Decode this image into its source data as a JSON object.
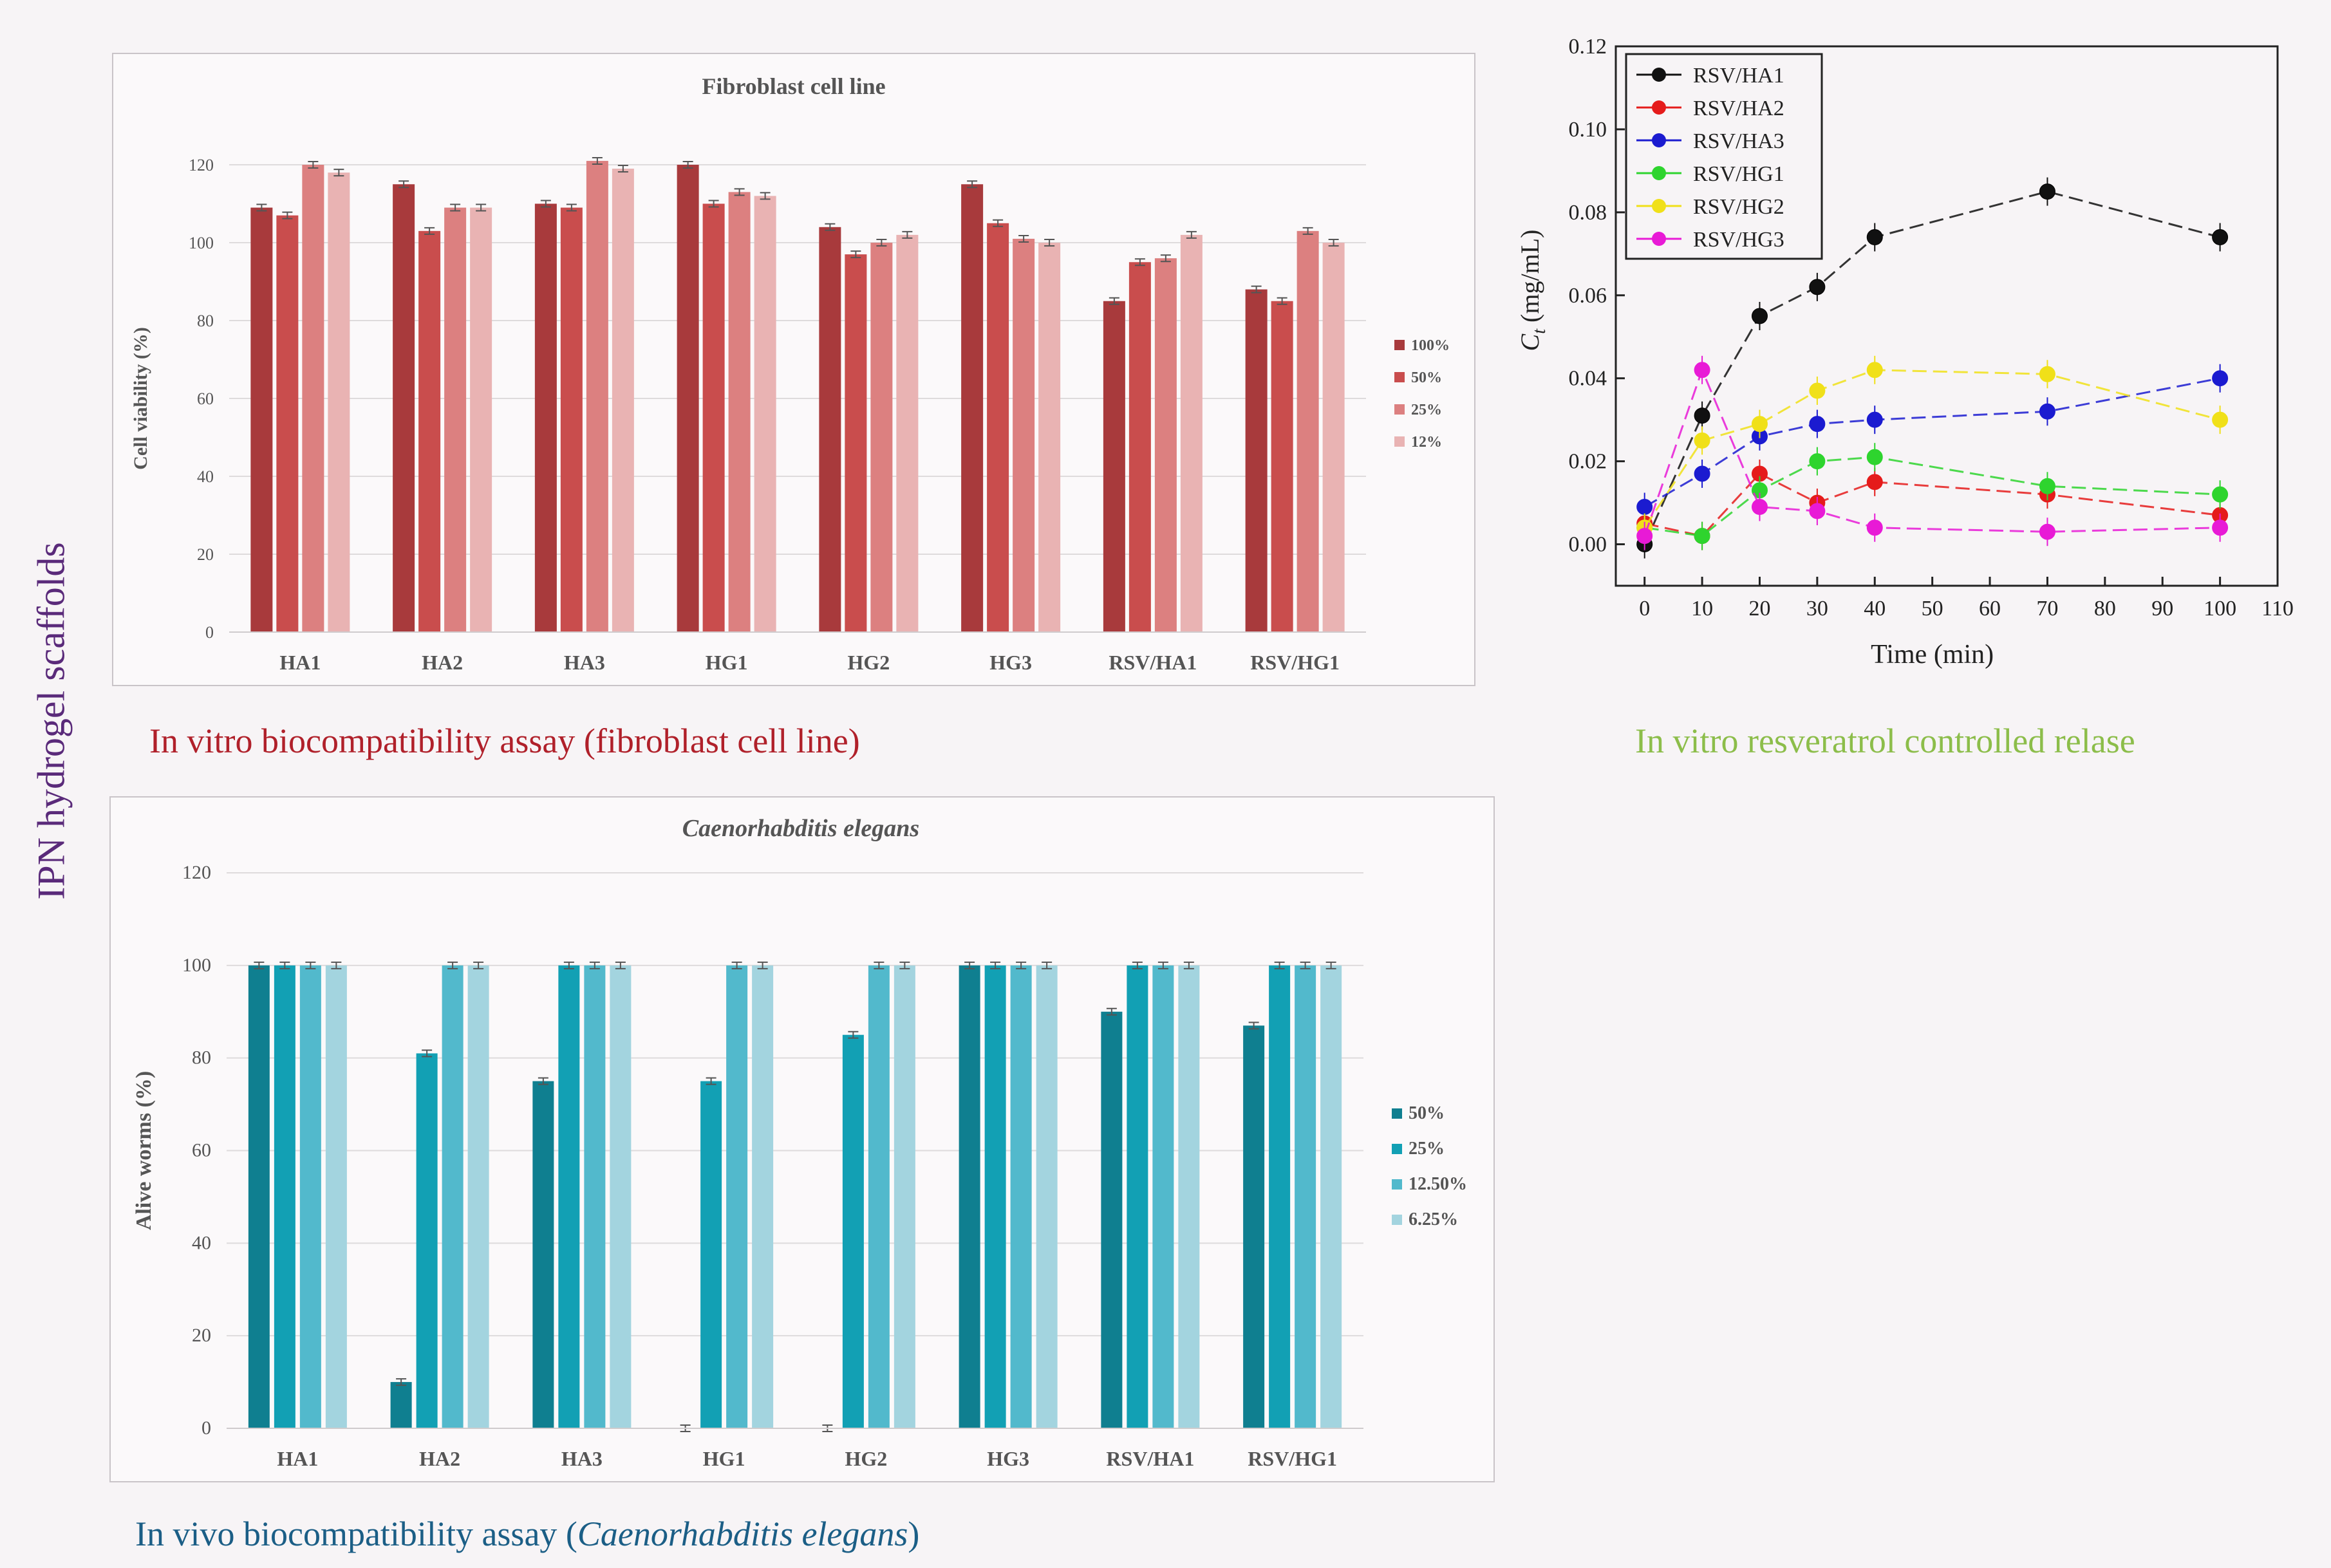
{
  "side_title": "IPN hydrogel scaffolds",
  "captions": {
    "fibro": "In vitro biocompatibility assay (fibroblast cell line)",
    "release": "In vitro resveratrol controlled relase",
    "worm_prefix": "In vivo biocompatibility assay (",
    "worm_italic": "Caenorhabditis elegans",
    "worm_suffix": ")"
  },
  "colors": {
    "caption_fibro": "#b0202a",
    "caption_release": "#8cbd4a",
    "caption_worm": "#1b5e86",
    "side_title": "#5a2a7a"
  },
  "chart_data": [
    {
      "id": "fibroblast",
      "type": "bar",
      "title": "Fibroblast  cell line",
      "ylabel": "Cell viability (%)",
      "xlabel": "",
      "ylim": [
        0,
        120
      ],
      "yticks": [
        0,
        20,
        40,
        60,
        80,
        100,
        120
      ],
      "categories": [
        "HA1",
        "HA2",
        "HA3",
        "HG1",
        "HG2",
        "HG3",
        "RSV/HA1",
        "RSV/HG1"
      ],
      "legend_position": "right",
      "series": [
        {
          "name": "100%",
          "color": "#a83a3c",
          "values": [
            109,
            115,
            110,
            120,
            104,
            115,
            85,
            88
          ]
        },
        {
          "name": "50%",
          "color": "#c94d4d",
          "values": [
            107,
            103,
            109,
            110,
            97,
            105,
            95,
            85
          ]
        },
        {
          "name": "25%",
          "color": "#dc8080",
          "values": [
            120,
            109,
            121,
            113,
            100,
            101,
            96,
            103
          ]
        },
        {
          "name": "12%",
          "color": "#e9b3b3",
          "values": [
            118,
            109,
            119,
            112,
            102,
            100,
            102,
            100
          ]
        }
      ]
    },
    {
      "id": "elegans",
      "type": "bar",
      "title": "Caenorhabditis  elegans",
      "ylabel": "Alive worms  (%)",
      "xlabel": "",
      "ylim": [
        0,
        120
      ],
      "yticks": [
        0,
        20,
        40,
        60,
        80,
        100,
        120
      ],
      "categories": [
        "HA1",
        "HA2",
        "HA3",
        "HG1",
        "HG2",
        "HG3",
        "RSV/HA1",
        "RSV/HG1"
      ],
      "legend_position": "right",
      "series": [
        {
          "name": "50%",
          "color": "#0f7f90",
          "values": [
            100,
            10,
            75,
            0,
            0,
            100,
            90,
            87
          ]
        },
        {
          "name": "25%",
          "color": "#12a0b4",
          "values": [
            100,
            81,
            100,
            75,
            85,
            100,
            100,
            100
          ]
        },
        {
          "name": "12.50%",
          "color": "#52b9cc",
          "values": [
            100,
            100,
            100,
            100,
            100,
            100,
            100,
            100
          ]
        },
        {
          "name": "6.25%",
          "color": "#a3d4df",
          "values": [
            100,
            100,
            100,
            100,
            100,
            100,
            100,
            100
          ]
        }
      ]
    },
    {
      "id": "release",
      "type": "line",
      "title": "",
      "xlabel": "Time (min)",
      "ylabel_main": "C",
      "ylabel_sub": "t",
      "ylabel_unit": "(mg/mL)",
      "xlim": [
        -5,
        110
      ],
      "ylim": [
        -0.01,
        0.12
      ],
      "xticks": [
        0,
        10,
        20,
        30,
        40,
        50,
        60,
        70,
        80,
        90,
        100,
        110
      ],
      "yticks": [
        "0.00",
        "0.02",
        "0.04",
        "0.06",
        "0.08",
        "0.10",
        "0.12"
      ],
      "x": [
        0,
        10,
        20,
        30,
        40,
        70,
        100
      ],
      "legend_position": "top-left",
      "series": [
        {
          "name": "RSV/HA1",
          "color": "#111111",
          "values": [
            0.0,
            0.031,
            0.055,
            0.062,
            0.074,
            0.085,
            0.074
          ]
        },
        {
          "name": "RSV/HA2",
          "color": "#e51b1b",
          "values": [
            0.005,
            0.002,
            0.017,
            0.01,
            0.015,
            0.012,
            0.007
          ]
        },
        {
          "name": "RSV/HA3",
          "color": "#1b1bd0",
          "values": [
            0.009,
            0.017,
            0.026,
            0.029,
            0.03,
            0.032,
            0.04
          ]
        },
        {
          "name": "RSV/HG1",
          "color": "#2ed42e",
          "values": [
            0.004,
            0.002,
            0.013,
            0.02,
            0.021,
            0.014,
            0.012
          ]
        },
        {
          "name": "RSV/HG2",
          "color": "#f0e019",
          "values": [
            0.004,
            0.025,
            0.029,
            0.037,
            0.042,
            0.041,
            0.03
          ]
        },
        {
          "name": "RSV/HG3",
          "color": "#e81ad6",
          "values": [
            0.002,
            0.042,
            0.009,
            0.008,
            0.004,
            0.003,
            0.004
          ]
        }
      ]
    }
  ]
}
